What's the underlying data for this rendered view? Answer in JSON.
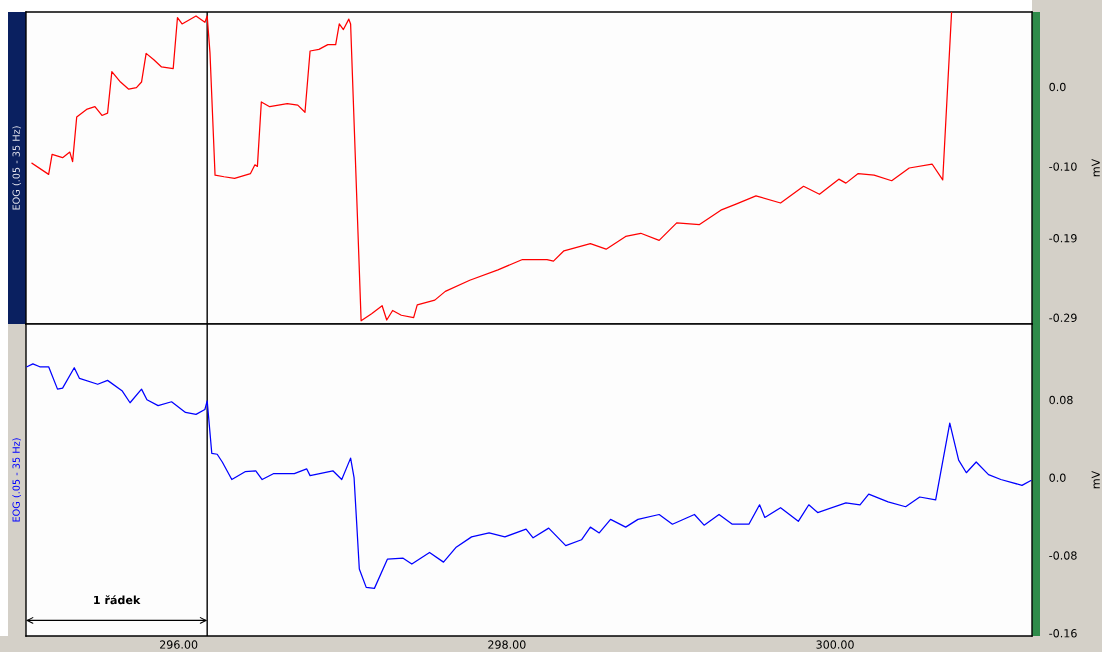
{
  "chart_data": [
    {
      "type": "line",
      "title": "EOG (.05 - 35 Hz)",
      "ylabel": "mV",
      "tick_labels": "y",
      "grid": false,
      "xlim": [
        295.07,
        301.2
      ],
      "ylim": [
        -0.298,
        0.094
      ],
      "yticks": [
        {
          "value": 0,
          "label": "0.0"
        },
        {
          "value": -0.1,
          "label": "-0.10"
        },
        {
          "value": -0.19,
          "label": "-0.19"
        },
        {
          "value": -0.29,
          "label": "-0.29"
        }
      ],
      "ref_lines": [
        {
          "axis": "x",
          "value": 296.174,
          "color": "#000000"
        }
      ],
      "series": [
        {
          "color": "#ff0000",
          "x": [
            295.107,
            295.208,
            295.229,
            295.293,
            295.337,
            295.354,
            295.379,
            295.443,
            295.49,
            295.533,
            295.567,
            295.593,
            295.646,
            295.696,
            295.743,
            295.774,
            295.802,
            295.849,
            295.896,
            295.967,
            295.993,
            296.021,
            296.106,
            296.16,
            296.174,
            296.191,
            296.222,
            296.277,
            296.341,
            296.438,
            296.465,
            296.48,
            296.504,
            296.555,
            296.662,
            296.726,
            296.77,
            296.801,
            296.855,
            296.909,
            296.957,
            296.979,
            297.004,
            297.037,
            297.048,
            297.112,
            297.176,
            297.24,
            297.268,
            297.304,
            297.357,
            297.432,
            297.454,
            297.561,
            297.625,
            297.774,
            297.946,
            298.095,
            298.245,
            298.284,
            298.348,
            298.509,
            298.605,
            298.724,
            298.816,
            298.928,
            299.035,
            299.174,
            299.304,
            299.4,
            299.518,
            299.668,
            299.808,
            299.905,
            300.023,
            300.066,
            300.141,
            300.238,
            300.345,
            300.452,
            300.591,
            300.656,
            300.71
          ],
          "values": [
            -0.096,
            -0.11,
            -0.085,
            -0.089,
            -0.082,
            -0.094,
            -0.038,
            -0.028,
            -0.025,
            -0.036,
            -0.033,
            0.019,
            0.006,
            -0.003,
            -0.001,
            0.006,
            0.042,
            0.034,
            0.025,
            0.023,
            0.087,
            0.079,
            0.089,
            0.081,
            0.089,
            0.043,
            -0.111,
            -0.113,
            -0.115,
            -0.109,
            -0.098,
            -0.1,
            -0.019,
            -0.025,
            -0.021,
            -0.023,
            -0.032,
            0.045,
            0.047,
            0.053,
            0.053,
            0.079,
            0.072,
            0.085,
            0.079,
            -0.294,
            -0.285,
            -0.275,
            -0.293,
            -0.281,
            -0.287,
            -0.29,
            -0.274,
            -0.268,
            -0.257,
            -0.243,
            -0.23,
            -0.217,
            -0.217,
            -0.219,
            -0.206,
            -0.197,
            -0.204,
            -0.188,
            -0.184,
            -0.193,
            -0.171,
            -0.173,
            -0.155,
            -0.147,
            -0.137,
            -0.146,
            -0.125,
            -0.135,
            -0.116,
            -0.121,
            -0.109,
            -0.111,
            -0.118,
            -0.102,
            -0.097,
            -0.117,
            0.094
          ]
        }
      ]
    },
    {
      "type": "line",
      "title": "EOG (.05 - 35 Hz)",
      "ylabel": "mV",
      "grid": false,
      "xlim": [
        295.07,
        301.2
      ],
      "ylim": [
        -0.163,
        0.158
      ],
      "xticks": [
        {
          "value": 296,
          "label": "296.00"
        },
        {
          "value": 298,
          "label": "298.00"
        },
        {
          "value": 300,
          "label": "300.00"
        }
      ],
      "yticks": [
        0.08,
        {
          "value": 0,
          "label": "0.0"
        },
        -0.08,
        -0.16
      ],
      "ref_lines": [
        {
          "axis": "x",
          "value": 296.174,
          "color": "#000000"
        }
      ],
      "annotations": [
        "1 řádek"
      ],
      "series": [
        {
          "color": "#0000ff",
          "x": [
            295.076,
            295.112,
            295.154,
            295.208,
            295.262,
            295.293,
            295.364,
            295.396,
            295.507,
            295.567,
            295.657,
            295.704,
            295.774,
            295.807,
            295.875,
            295.957,
            296.042,
            296.106,
            296.16,
            296.174,
            296.202,
            296.235,
            296.266,
            296.324,
            296.405,
            296.47,
            296.509,
            296.577,
            296.705,
            296.78,
            296.801,
            296.94,
            296.994,
            297.048,
            297.069,
            297.101,
            297.143,
            297.193,
            297.272,
            297.368,
            297.421,
            297.529,
            297.614,
            297.689,
            297.785,
            297.892,
            297.988,
            298.117,
            298.16,
            298.255,
            298.359,
            298.455,
            298.509,
            298.563,
            298.632,
            298.724,
            298.799,
            298.928,
            299.009,
            299.143,
            299.202,
            299.293,
            299.374,
            299.475,
            299.54,
            299.572,
            299.668,
            299.776,
            299.84,
            299.894,
            300.066,
            300.152,
            300.205,
            300.323,
            300.43,
            300.516,
            300.613,
            300.699,
            300.753,
            300.8,
            300.86,
            300.935,
            301.01,
            301.139,
            301.193
          ],
          "values": [
            0.114,
            0.117,
            0.114,
            0.114,
            0.091,
            0.092,
            0.113,
            0.102,
            0.096,
            0.1,
            0.089,
            0.077,
            0.091,
            0.08,
            0.074,
            0.078,
            0.067,
            0.065,
            0.07,
            0.079,
            0.025,
            0.024,
            0.016,
            -0.002,
            0.006,
            0.007,
            -0.002,
            0.004,
            0.004,
            0.009,
            0.002,
            0.007,
            -0.002,
            0.02,
            0.0,
            -0.094,
            -0.113,
            -0.114,
            -0.084,
            -0.083,
            -0.089,
            -0.077,
            -0.087,
            -0.072,
            -0.061,
            -0.057,
            -0.061,
            -0.053,
            -0.062,
            -0.052,
            -0.07,
            -0.064,
            -0.051,
            -0.057,
            -0.043,
            -0.051,
            -0.043,
            -0.038,
            -0.048,
            -0.038,
            -0.049,
            -0.038,
            -0.048,
            -0.048,
            -0.028,
            -0.041,
            -0.031,
            -0.045,
            -0.028,
            -0.036,
            -0.026,
            -0.028,
            -0.017,
            -0.025,
            -0.03,
            -0.02,
            -0.023,
            0.056,
            0.018,
            0.005,
            0.016,
            0.003,
            -0.002,
            -0.008,
            -0.003
          ]
        }
      ]
    }
  ]
}
